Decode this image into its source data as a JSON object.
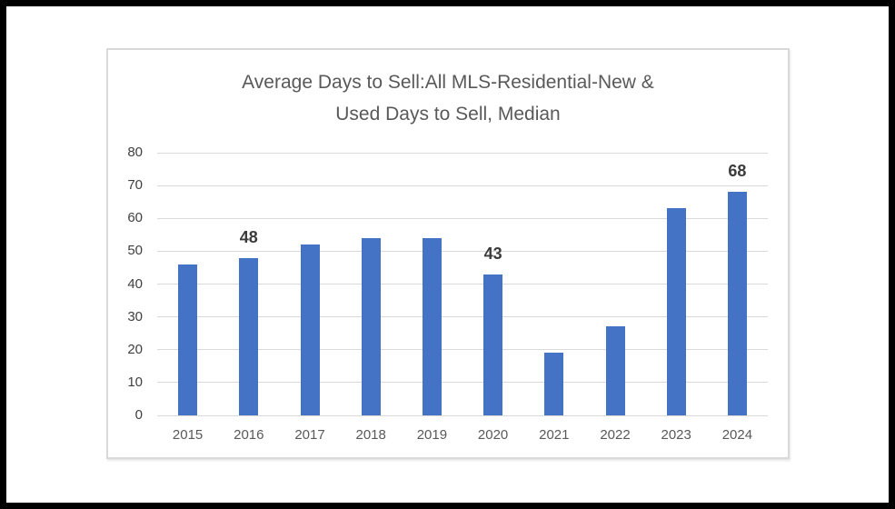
{
  "chart_data": {
    "type": "bar",
    "title": "Average Days to Sell:All MLS-Residential-New & Used Days to Sell, Median",
    "title_lines": [
      "Average Days to Sell:All MLS-Residential-New &",
      "Used Days to Sell, Median"
    ],
    "categories": [
      "2015",
      "2016",
      "2017",
      "2018",
      "2019",
      "2020",
      "2021",
      "2022",
      "2023",
      "2024"
    ],
    "values": [
      46,
      48,
      52,
      54,
      54,
      43,
      19,
      27,
      63,
      68
    ],
    "data_labels": [
      null,
      "48",
      null,
      null,
      null,
      "43",
      null,
      null,
      null,
      "68"
    ],
    "xlabel": "",
    "ylabel": "",
    "ylim": [
      0,
      80
    ],
    "yticks": [
      0,
      10,
      20,
      30,
      40,
      50,
      60,
      70,
      80
    ],
    "grid": true,
    "legend": false,
    "colors": {
      "bar": "#4472C4",
      "grid": "#D9D9D9",
      "title": "#595959",
      "y_tick_labels": "#404040",
      "x_tick_labels": "#595959",
      "data_label": "#3B3B3B",
      "frame_border": "#D9D9D9",
      "page_border": "#000000",
      "background": "#FFFFFF"
    }
  }
}
